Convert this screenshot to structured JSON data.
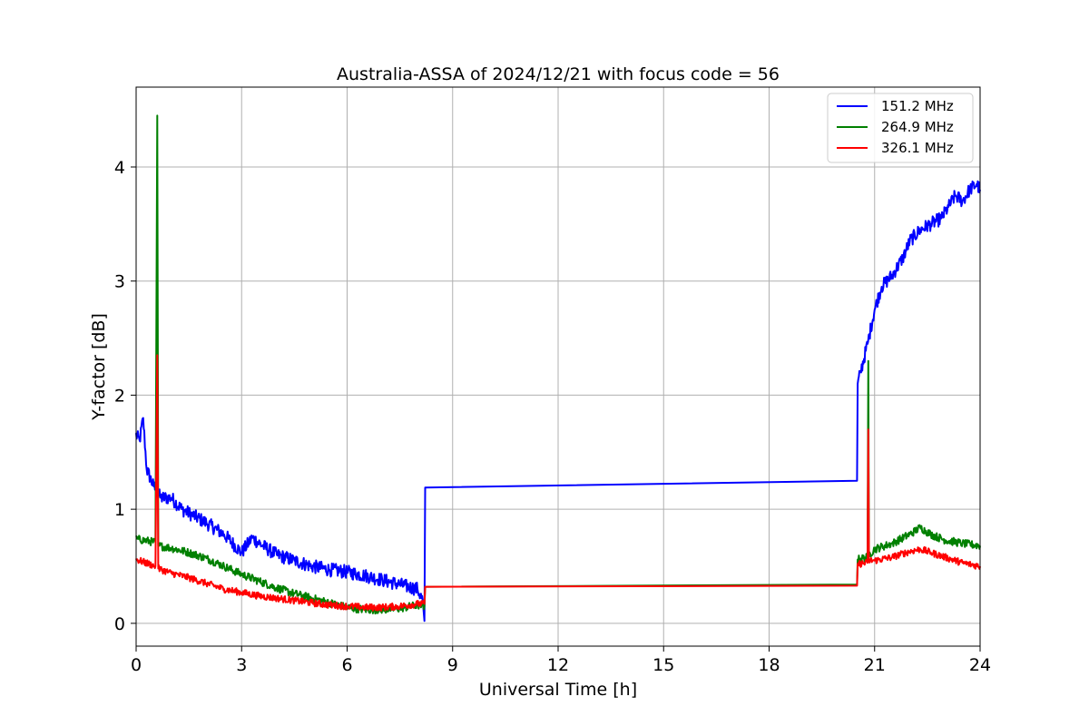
{
  "chart_data": {
    "type": "line",
    "title": "Australia-ASSA of 2024/12/21 with focus code = 56",
    "xlabel": "Universal Time [h]",
    "ylabel": "Y-factor [dB]",
    "xlim": [
      0,
      24
    ],
    "ylim": [
      -0.2,
      4.7
    ],
    "xticks": [
      0,
      3,
      6,
      9,
      12,
      15,
      18,
      21,
      24
    ],
    "yticks": [
      0,
      1,
      2,
      3,
      4
    ],
    "grid": true,
    "legend_position": "top-right",
    "series": [
      {
        "name": "151.2 MHz",
        "color": "#0000ff",
        "points": [
          [
            0.0,
            1.65
          ],
          [
            0.1,
            1.6
          ],
          [
            0.2,
            1.8
          ],
          [
            0.3,
            1.35
          ],
          [
            0.5,
            1.2
          ],
          [
            0.7,
            1.1
          ],
          [
            1.0,
            1.1
          ],
          [
            1.3,
            1.0
          ],
          [
            1.6,
            0.95
          ],
          [
            2.0,
            0.88
          ],
          [
            2.5,
            0.78
          ],
          [
            3.0,
            0.62
          ],
          [
            3.3,
            0.75
          ],
          [
            3.6,
            0.68
          ],
          [
            4.0,
            0.6
          ],
          [
            4.5,
            0.55
          ],
          [
            5.0,
            0.5
          ],
          [
            5.5,
            0.47
          ],
          [
            6.0,
            0.45
          ],
          [
            6.5,
            0.42
          ],
          [
            7.0,
            0.38
          ],
          [
            7.5,
            0.34
          ],
          [
            8.0,
            0.3
          ],
          [
            8.15,
            0.2
          ],
          [
            8.2,
            0.02
          ],
          [
            8.22,
            1.19
          ],
          [
            20.5,
            1.25
          ],
          [
            20.52,
            2.1
          ],
          [
            20.6,
            2.2
          ],
          [
            20.8,
            2.45
          ],
          [
            21.0,
            2.75
          ],
          [
            21.2,
            2.95
          ],
          [
            21.5,
            3.05
          ],
          [
            21.8,
            3.2
          ],
          [
            22.0,
            3.35
          ],
          [
            22.3,
            3.45
          ],
          [
            22.6,
            3.5
          ],
          [
            22.9,
            3.55
          ],
          [
            23.1,
            3.65
          ],
          [
            23.3,
            3.75
          ],
          [
            23.5,
            3.7
          ],
          [
            23.7,
            3.8
          ],
          [
            23.9,
            3.85
          ],
          [
            24.0,
            3.8
          ]
        ],
        "noise": 0.06
      },
      {
        "name": "264.9 MHz",
        "color": "#008000",
        "points": [
          [
            0.0,
            0.74
          ],
          [
            0.55,
            0.71
          ],
          [
            0.6,
            4.45
          ],
          [
            0.63,
            0.68
          ],
          [
            1.0,
            0.66
          ],
          [
            1.5,
            0.62
          ],
          [
            2.0,
            0.57
          ],
          [
            2.5,
            0.5
          ],
          [
            3.0,
            0.43
          ],
          [
            3.5,
            0.37
          ],
          [
            4.0,
            0.31
          ],
          [
            4.5,
            0.26
          ],
          [
            5.0,
            0.22
          ],
          [
            5.5,
            0.18
          ],
          [
            6.0,
            0.14
          ],
          [
            6.5,
            0.12
          ],
          [
            7.0,
            0.12
          ],
          [
            7.5,
            0.13
          ],
          [
            8.0,
            0.16
          ],
          [
            8.2,
            0.15
          ],
          [
            8.22,
            0.32
          ],
          [
            20.5,
            0.34
          ],
          [
            20.52,
            0.56
          ],
          [
            20.8,
            0.58
          ],
          [
            20.82,
            2.3
          ],
          [
            20.84,
            0.6
          ],
          [
            21.0,
            0.65
          ],
          [
            21.5,
            0.7
          ],
          [
            22.0,
            0.78
          ],
          [
            22.3,
            0.84
          ],
          [
            22.6,
            0.78
          ],
          [
            23.0,
            0.73
          ],
          [
            23.5,
            0.7
          ],
          [
            24.0,
            0.68
          ]
        ],
        "noise": 0.035
      },
      {
        "name": "326.1 MHz",
        "color": "#ff0000",
        "points": [
          [
            0.0,
            0.56
          ],
          [
            0.55,
            0.5
          ],
          [
            0.6,
            2.35
          ],
          [
            0.63,
            0.48
          ],
          [
            1.0,
            0.44
          ],
          [
            1.5,
            0.4
          ],
          [
            2.0,
            0.35
          ],
          [
            2.5,
            0.3
          ],
          [
            3.0,
            0.27
          ],
          [
            3.5,
            0.24
          ],
          [
            4.0,
            0.22
          ],
          [
            4.5,
            0.2
          ],
          [
            5.0,
            0.18
          ],
          [
            5.5,
            0.16
          ],
          [
            6.0,
            0.15
          ],
          [
            6.5,
            0.14
          ],
          [
            7.0,
            0.14
          ],
          [
            7.5,
            0.15
          ],
          [
            8.0,
            0.17
          ],
          [
            8.2,
            0.17
          ],
          [
            8.22,
            0.32
          ],
          [
            20.5,
            0.33
          ],
          [
            20.52,
            0.52
          ],
          [
            20.8,
            0.53
          ],
          [
            20.82,
            1.7
          ],
          [
            20.84,
            0.55
          ],
          [
            21.0,
            0.55
          ],
          [
            21.5,
            0.58
          ],
          [
            22.0,
            0.63
          ],
          [
            22.3,
            0.65
          ],
          [
            22.6,
            0.62
          ],
          [
            23.0,
            0.58
          ],
          [
            23.5,
            0.53
          ],
          [
            24.0,
            0.5
          ]
        ],
        "noise": 0.03
      }
    ]
  }
}
